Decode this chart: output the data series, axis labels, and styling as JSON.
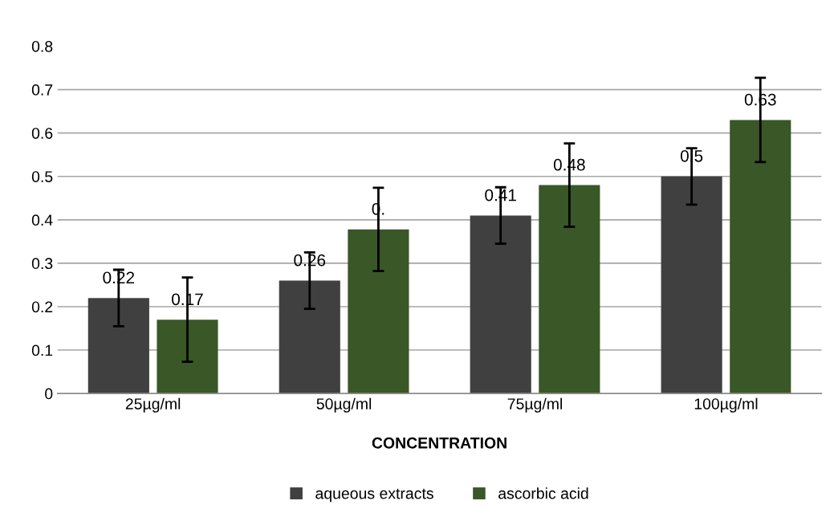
{
  "chart_data": {
    "type": "bar",
    "xlabel": "CONCENTRATION",
    "categories": [
      "25µg/ml",
      "50µg/ml",
      "75µg/ml",
      "100µg/ml"
    ],
    "series": [
      {
        "name": "aqueous extracts",
        "color": "#404040",
        "values": [
          0.22,
          0.26,
          0.41,
          0.5
        ],
        "errors": [
          0.065,
          0.065,
          0.065,
          0.065
        ],
        "value_labels": [
          "0.22",
          "0.26",
          "0.41",
          "0.5"
        ]
      },
      {
        "name": "ascorbic acid",
        "color": "#3a5727",
        "values": [
          0.17,
          0.378,
          0.48,
          0.63
        ],
        "errors": [
          0.097,
          0.096,
          0.096,
          0.097
        ],
        "value_labels": [
          "0.17",
          "0.",
          "0.48",
          "0.63"
        ]
      }
    ],
    "ylim": [
      0,
      0.8
    ],
    "yticks": [
      0,
      0.1,
      0.2,
      0.3,
      0.4,
      0.5,
      0.6,
      0.7,
      0.8
    ],
    "grid": "y",
    "legend": "bottom"
  }
}
